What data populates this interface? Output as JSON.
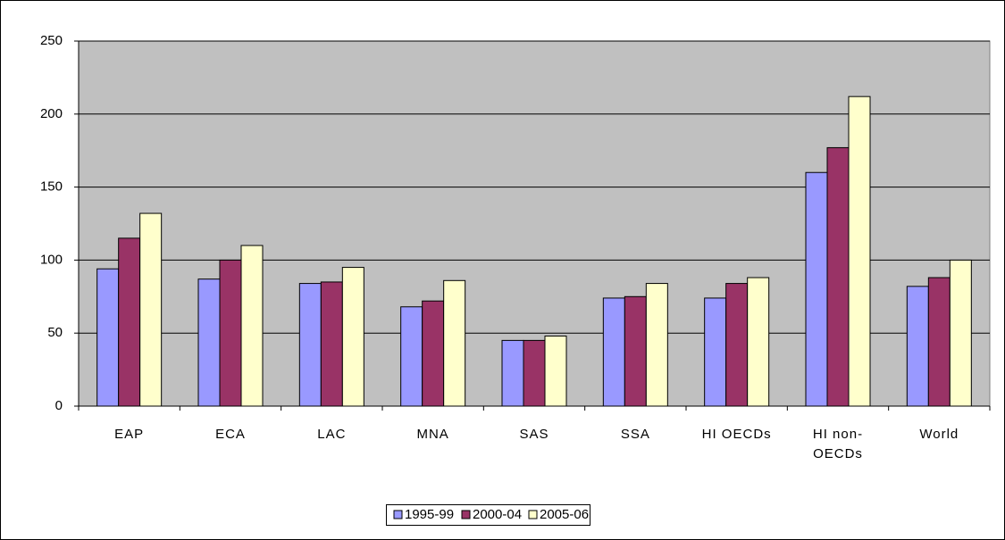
{
  "chart_data": {
    "type": "bar",
    "categories": [
      "EAP",
      "ECA",
      "LAC",
      "MNA",
      "SAS",
      "SSA",
      "HI OECDs",
      "HI non-OECDs",
      "World"
    ],
    "series": [
      {
        "name": "1995-99",
        "color": "#9999ff",
        "values": [
          94,
          87,
          84,
          68,
          45,
          74,
          74,
          160,
          82
        ]
      },
      {
        "name": "2000-04",
        "color": "#993366",
        "values": [
          115,
          100,
          85,
          72,
          45,
          75,
          84,
          177,
          88
        ]
      },
      {
        "name": "2005-06",
        "color": "#ffffcc",
        "values": [
          132,
          110,
          95,
          86,
          48,
          84,
          88,
          212,
          100
        ]
      }
    ],
    "ylim": [
      0,
      250
    ],
    "yticks": [
      0,
      50,
      100,
      150,
      200,
      250
    ],
    "grid": true,
    "plot_background": "#c0c0c0"
  }
}
